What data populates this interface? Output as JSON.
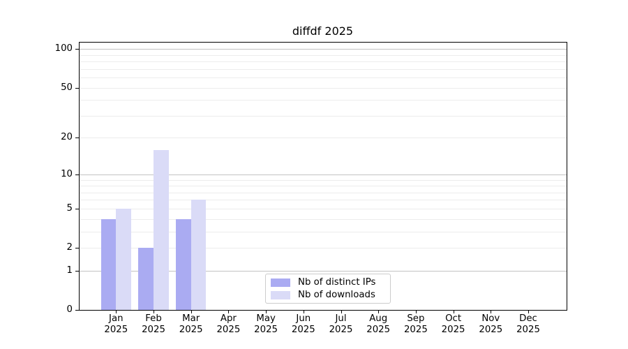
{
  "chart_data": {
    "type": "bar",
    "title": "diffdf 2025",
    "categories": [
      "Jan",
      "Feb",
      "Mar",
      "Apr",
      "May",
      "Jun",
      "Jul",
      "Aug",
      "Sep",
      "Oct",
      "Nov",
      "Dec"
    ],
    "x_tick_line2": "2025",
    "series": [
      {
        "name": "Nb of distinct IPs",
        "color": "#aaabf2",
        "values": [
          4,
          2,
          4,
          0,
          0,
          0,
          0,
          0,
          0,
          0,
          0,
          0
        ]
      },
      {
        "name": "Nb of downloads",
        "color": "#dadbf7",
        "values": [
          5,
          16,
          6,
          0,
          0,
          0,
          0,
          0,
          0,
          0,
          0,
          0
        ]
      }
    ],
    "yscale": "symlog",
    "ylim": [
      0,
      113
    ],
    "y_tick_values": [
      0,
      1,
      2,
      5,
      10,
      20,
      50,
      100
    ],
    "y_major_gridlines": [
      1,
      10,
      100
    ],
    "y_minor_gridlines": [
      2,
      3,
      4,
      5,
      6,
      7,
      8,
      9,
      20,
      30,
      40,
      50,
      60,
      70,
      80,
      90
    ],
    "grid": true,
    "legend_position": "bottom-center"
  },
  "colors": {
    "background": "#ffffff",
    "bar_distinct_ips": "#aaabf2",
    "bar_downloads": "#dadbf7",
    "grid_major": "#c3c3c3",
    "grid_minor": "#ececec",
    "spine": "#000000",
    "text": "#000000",
    "legend_border": "#cccccc"
  }
}
